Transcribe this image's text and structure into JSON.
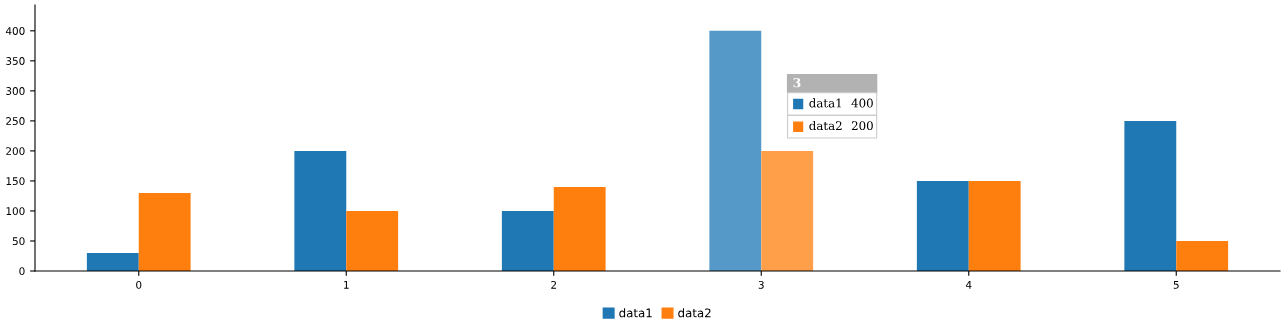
{
  "chart_data": {
    "type": "bar",
    "categories": [
      "0",
      "1",
      "2",
      "3",
      "4",
      "5"
    ],
    "series": [
      {
        "name": "data1",
        "color": "#1f77b4",
        "colors": [
          "#1f77b4",
          "#1f77b4",
          "#1f77b4",
          "#5599c8",
          "#1f77b4",
          "#1f77b4"
        ],
        "values": [
          30,
          200,
          100,
          400,
          150,
          250
        ]
      },
      {
        "name": "data2",
        "color": "#ff7f0e",
        "colors": [
          "#ff7f0e",
          "#ff7f0e",
          "#ff7f0e",
          "#ff9f4a",
          "#ff7f0e",
          "#ff7f0e"
        ],
        "values": [
          130,
          100,
          140,
          200,
          150,
          50
        ]
      }
    ],
    "ylim": [
      0,
      443
    ],
    "yticks": [
      0,
      50,
      100,
      150,
      200,
      250,
      300,
      350,
      400
    ],
    "annotations": [
      "3",
      "data1",
      "400",
      "data2",
      "200"
    ],
    "grid": false,
    "legend": "bottom"
  }
}
